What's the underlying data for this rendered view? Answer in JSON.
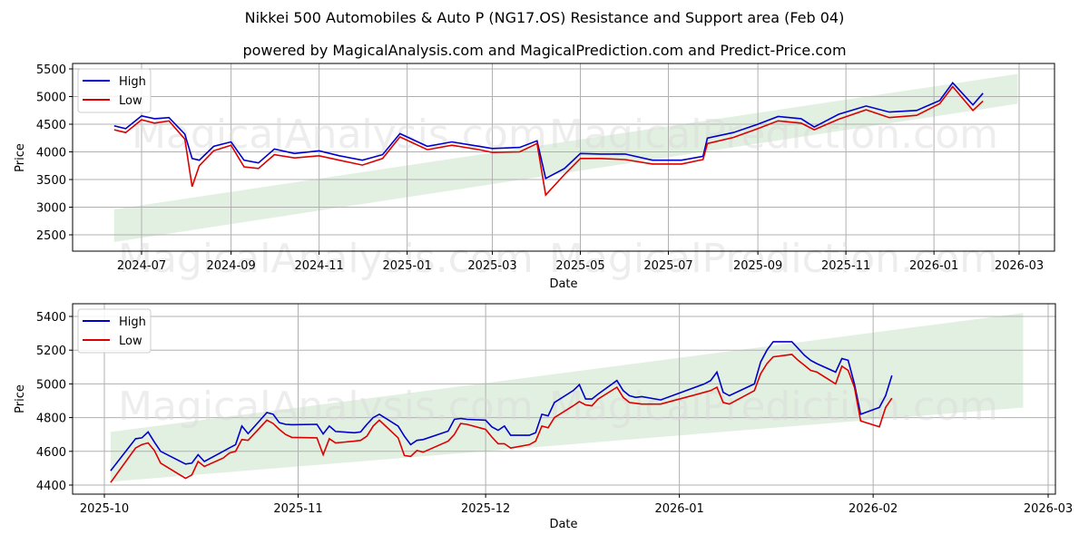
{
  "title": "Nikkei 500 Automobiles & Auto P (NG17.OS) Resistance and Support area (Feb 04)",
  "subtitle": "powered by MagicalAnalysis.com and MagicalPrediction.com and Predict-Price.com",
  "watermarks": [
    "MagicalAnalysis.com",
    "MagicalPrediction.com"
  ],
  "colors": {
    "high": "#0000cc",
    "low": "#dd0000",
    "band": "#d6ead6",
    "grid": "#b0b0b0"
  },
  "chart_data": [
    {
      "type": "line",
      "title": "Full history",
      "xlabel": "Date",
      "ylabel": "Price",
      "ylim": [
        2200,
        5550
      ],
      "grid": true,
      "legend": {
        "position": "upper left",
        "entries": [
          "High",
          "Low"
        ]
      },
      "x_ticks": [
        "2024-07",
        "2024-09",
        "2024-11",
        "2025-01",
        "2025-03",
        "2025-05",
        "2025-07",
        "2025-09",
        "2025-11",
        "2026-01",
        "2026-03"
      ],
      "y_ticks": [
        2500,
        3000,
        3500,
        4000,
        4500,
        5000,
        5500
      ],
      "x": [
        "2024-06-12",
        "2024-06-20",
        "2024-07-01",
        "2024-07-10",
        "2024-07-20",
        "2024-07-31",
        "2024-08-05",
        "2024-08-10",
        "2024-08-20",
        "2024-09-01",
        "2024-09-10",
        "2024-09-20",
        "2024-10-01",
        "2024-10-15",
        "2024-11-01",
        "2024-11-15",
        "2024-12-01",
        "2024-12-15",
        "2024-12-27",
        "2025-01-15",
        "2025-02-01",
        "2025-02-20",
        "2025-03-01",
        "2025-03-20",
        "2025-04-01",
        "2025-04-07",
        "2025-04-20",
        "2025-05-01",
        "2025-05-15",
        "2025-06-01",
        "2025-06-20",
        "2025-07-10",
        "2025-07-25",
        "2025-07-28",
        "2025-08-15",
        "2025-09-01",
        "2025-09-15",
        "2025-10-01",
        "2025-10-10",
        "2025-10-27",
        "2025-11-15",
        "2025-12-01",
        "2025-12-20",
        "2026-01-05",
        "2026-01-14",
        "2026-01-28",
        "2026-02-04"
      ],
      "series": [
        {
          "name": "High",
          "values": [
            4470,
            4420,
            4650,
            4600,
            4620,
            4320,
            3880,
            3850,
            4100,
            4180,
            3850,
            3800,
            4050,
            3970,
            4020,
            3930,
            3850,
            3950,
            4330,
            4100,
            4180,
            4100,
            4060,
            4080,
            4200,
            3520,
            3700,
            3970,
            3960,
            3960,
            3850,
            3850,
            3920,
            4250,
            4350,
            4500,
            4640,
            4600,
            4450,
            4680,
            4830,
            4720,
            4750,
            4930,
            5250,
            4850,
            5060
          ]
        },
        {
          "name": "Low",
          "values": [
            4400,
            4350,
            4580,
            4520,
            4560,
            4230,
            3370,
            3750,
            4020,
            4120,
            3730,
            3700,
            3950,
            3890,
            3930,
            3850,
            3760,
            3880,
            4270,
            4040,
            4120,
            4040,
            3990,
            4000,
            4150,
            3220,
            3590,
            3880,
            3880,
            3860,
            3780,
            3780,
            3860,
            4150,
            4260,
            4420,
            4560,
            4520,
            4400,
            4590,
            4760,
            4620,
            4660,
            4870,
            5180,
            4750,
            4920
          ]
        }
      ],
      "band": {
        "x_start": "2024-06-12",
        "x_end": "2026-02-28",
        "upper": [
          2960,
          5410
        ],
        "lower": [
          2370,
          4870
        ]
      }
    },
    {
      "type": "line",
      "title": "Recent (zoom)",
      "xlabel": "Date",
      "ylabel": "Price",
      "ylim": [
        4380,
        5475
      ],
      "grid": true,
      "legend": {
        "position": "upper left",
        "entries": [
          "High",
          "Low"
        ]
      },
      "x_ticks": [
        "2025-10",
        "2025-11",
        "2025-12",
        "2026-01",
        "2026-02",
        "2026-03"
      ],
      "y_ticks": [
        4400,
        4600,
        4800,
        5000,
        5200,
        5400
      ],
      "x": [
        "2025-10-02",
        "2025-10-06",
        "2025-10-07",
        "2025-10-08",
        "2025-10-09",
        "2025-10-10",
        "2025-10-14",
        "2025-10-15",
        "2025-10-16",
        "2025-10-17",
        "2025-10-20",
        "2025-10-21",
        "2025-10-22",
        "2025-10-23",
        "2025-10-24",
        "2025-10-27",
        "2025-10-28",
        "2025-10-29",
        "2025-10-30",
        "2025-10-31",
        "2025-11-04",
        "2025-11-05",
        "2025-11-06",
        "2025-11-07",
        "2025-11-10",
        "2025-11-11",
        "2025-11-12",
        "2025-11-13",
        "2025-11-14",
        "2025-11-17",
        "2025-11-18",
        "2025-11-19",
        "2025-11-20",
        "2025-11-21",
        "2025-11-25",
        "2025-11-26",
        "2025-11-27",
        "2025-11-28",
        "2025-12-01",
        "2025-12-02",
        "2025-12-03",
        "2025-12-04",
        "2025-12-05",
        "2025-12-08",
        "2025-12-09",
        "2025-12-10",
        "2025-12-11",
        "2025-12-12",
        "2025-12-15",
        "2025-12-16",
        "2025-12-17",
        "2025-12-18",
        "2025-12-19",
        "2025-12-22",
        "2025-12-23",
        "2025-12-24",
        "2025-12-25",
        "2025-12-26",
        "2025-12-29",
        "2026-01-05",
        "2026-01-06",
        "2026-01-07",
        "2026-01-08",
        "2026-01-09",
        "2026-01-13",
        "2026-01-14",
        "2026-01-15",
        "2026-01-16",
        "2026-01-19",
        "2026-01-20",
        "2026-01-21",
        "2026-01-22",
        "2026-01-23",
        "2026-01-26",
        "2026-01-27",
        "2026-01-28",
        "2026-01-29",
        "2026-01-30",
        "2026-02-02",
        "2026-02-03",
        "2026-02-04"
      ],
      "series": [
        {
          "name": "High",
          "values": [
            4485,
            4675,
            4680,
            4715,
            4655,
            4600,
            4525,
            4530,
            4580,
            4540,
            4600,
            4620,
            4640,
            4750,
            4705,
            4830,
            4820,
            4770,
            4760,
            4758,
            4760,
            4703,
            4750,
            4718,
            4710,
            4715,
            4760,
            4800,
            4820,
            4750,
            4690,
            4640,
            4665,
            4670,
            4720,
            4790,
            4795,
            4790,
            4785,
            4745,
            4725,
            4750,
            4695,
            4695,
            4710,
            4820,
            4810,
            4890,
            4960,
            4995,
            4910,
            4910,
            4940,
            5020,
            4960,
            4930,
            4920,
            4925,
            4905,
            5000,
            5020,
            5070,
            4950,
            4930,
            5000,
            5130,
            5200,
            5250,
            5250,
            5210,
            5170,
            5140,
            5120,
            5070,
            5150,
            5140,
            5000,
            4820,
            4860,
            4930,
            5050
          ]
        },
        {
          "name": "Low",
          "values": [
            4415,
            4620,
            4640,
            4650,
            4605,
            4530,
            4440,
            4460,
            4540,
            4510,
            4560,
            4590,
            4600,
            4670,
            4665,
            4785,
            4765,
            4730,
            4700,
            4683,
            4680,
            4580,
            4675,
            4650,
            4660,
            4665,
            4690,
            4750,
            4785,
            4680,
            4575,
            4570,
            4605,
            4595,
            4660,
            4700,
            4765,
            4760,
            4730,
            4685,
            4645,
            4645,
            4620,
            4640,
            4660,
            4750,
            4740,
            4800,
            4870,
            4895,
            4875,
            4870,
            4910,
            4980,
            4920,
            4890,
            4885,
            4880,
            4880,
            4950,
            4960,
            4980,
            4890,
            4880,
            4960,
            5060,
            5120,
            5160,
            5175,
            5140,
            5110,
            5080,
            5070,
            5000,
            5105,
            5080,
            4980,
            4780,
            4745,
            4860,
            4915
          ]
        }
      ],
      "band": {
        "x_start": "2025-10-02",
        "x_end": "2026-02-25",
        "upper": [
          4715,
          5420
        ],
        "lower": [
          4420,
          4860
        ]
      }
    }
  ]
}
